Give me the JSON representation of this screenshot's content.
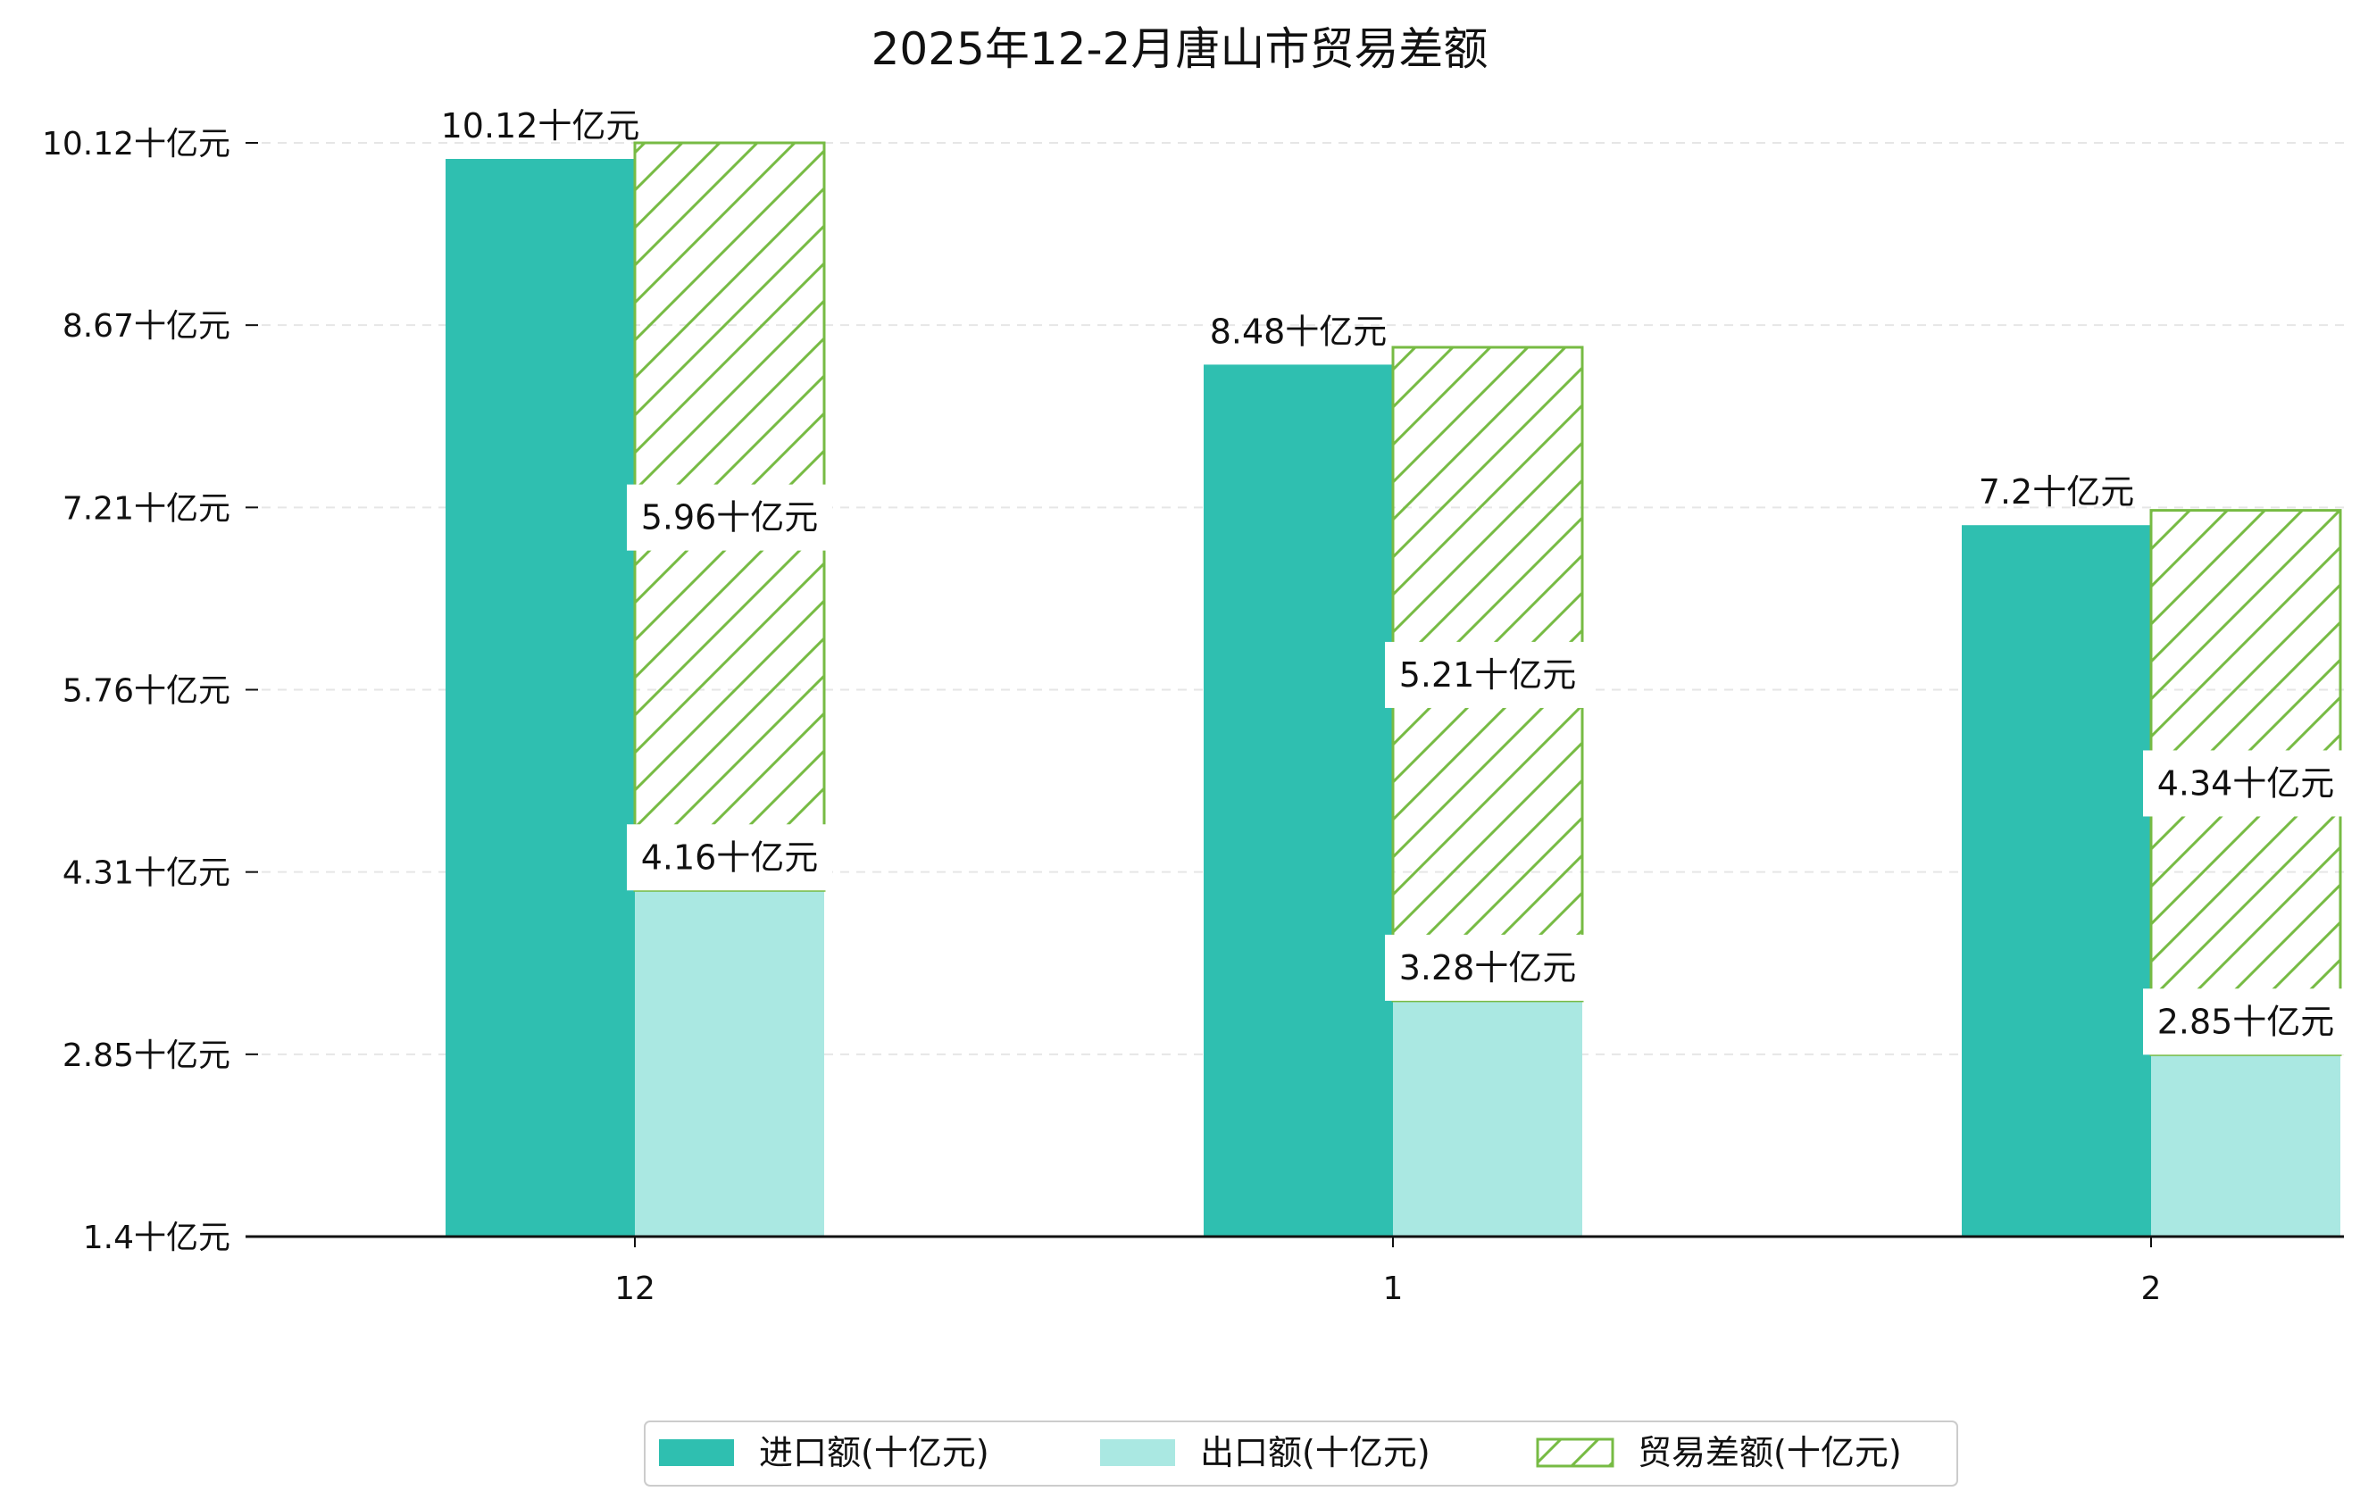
{
  "chart_data": {
    "type": "bar",
    "title": "2025年12-2月唐山市贸易差额",
    "categories": [
      "12",
      "1",
      "2"
    ],
    "unit": "十亿元",
    "yticks": [
      "1.4十亿元",
      "2.85十亿元",
      "4.31十亿元",
      "5.76十亿元",
      "7.21十亿元",
      "8.67十亿元",
      "10.12十亿元"
    ],
    "ylim": [
      1.4,
      10.12
    ],
    "series": [
      {
        "name": "进口额(十亿元)",
        "values": [
          10.12,
          8.48,
          7.2
        ],
        "labels": [
          "10.12十亿元",
          "8.48十亿元",
          "7.2十亿元"
        ],
        "color": "#2fbfb0"
      },
      {
        "name": "出口额(十亿元)",
        "values": [
          4.16,
          3.28,
          2.85
        ],
        "labels": [
          "4.16十亿元",
          "3.28十亿元",
          "2.85十亿元"
        ],
        "color": "#aae8e2"
      },
      {
        "name": "贸易差额(十亿元)",
        "values": [
          5.96,
          5.21,
          4.34
        ],
        "labels": [
          "5.96十亿元",
          "5.21十亿元",
          "4.34十亿元"
        ],
        "color": "#77bb44",
        "hatch": true
      }
    ],
    "legend": "bottom-center",
    "grid": "horizontal-dashed"
  }
}
